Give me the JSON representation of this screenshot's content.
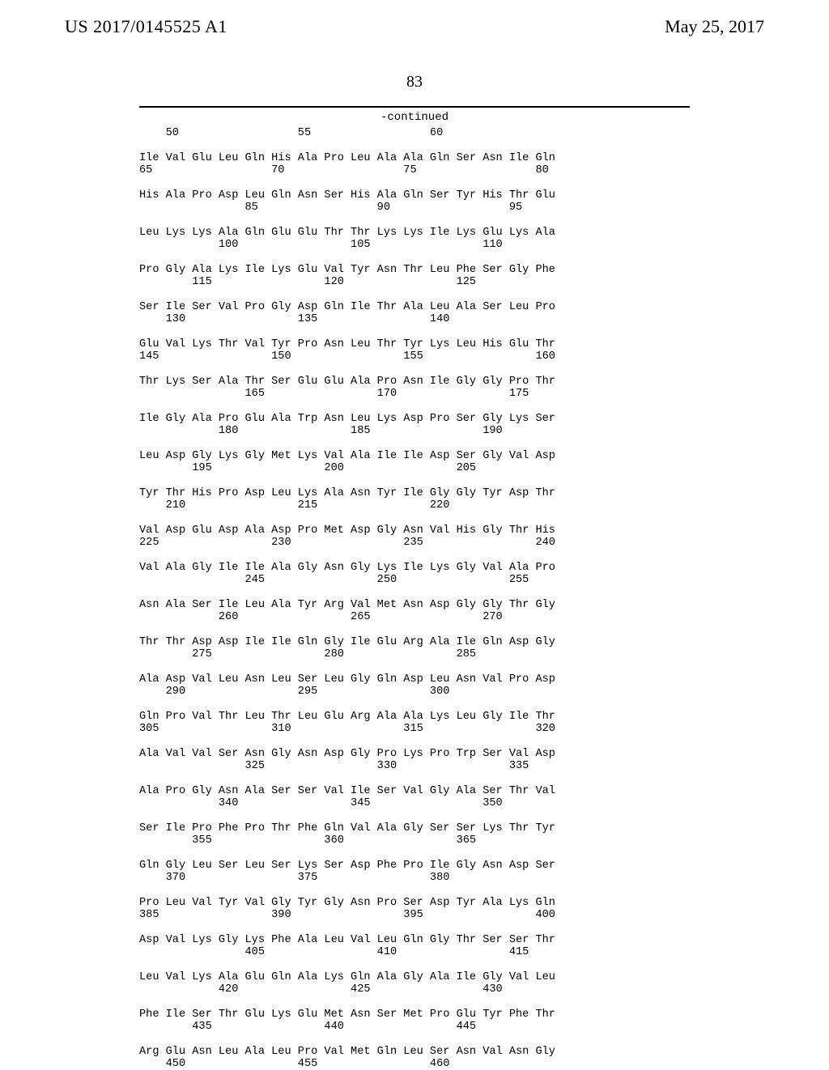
{
  "header": {
    "patent_id": "US 2017/0145525 A1",
    "pub_date": "May 25, 2017"
  },
  "page_number": "83",
  "continued_label": "-continued",
  "sequence_triplets": [
    {
      "l1": "    50                  55                  60",
      "l2": "",
      "l3": ""
    },
    {
      "l1": "Ile Val Glu Leu Gln His Ala Pro Leu Ala Ala Gln Ser Asn Ile Gln",
      "l2": "65                  70                  75                  80",
      "l3": ""
    },
    {
      "l1": "His Ala Pro Asp Leu Gln Asn Ser His Ala Gln Ser Tyr His Thr Glu",
      "l2": "                85                  90                  95",
      "l3": ""
    },
    {
      "l1": "Leu Lys Lys Ala Gln Glu Glu Thr Thr Lys Lys Ile Lys Glu Lys Ala",
      "l2": "            100                 105                 110",
      "l3": ""
    },
    {
      "l1": "Pro Gly Ala Lys Ile Lys Glu Val Tyr Asn Thr Leu Phe Ser Gly Phe",
      "l2": "        115                 120                 125",
      "l3": ""
    },
    {
      "l1": "Ser Ile Ser Val Pro Gly Asp Gln Ile Thr Ala Leu Ala Ser Leu Pro",
      "l2": "    130                 135                 140",
      "l3": ""
    },
    {
      "l1": "Glu Val Lys Thr Val Tyr Pro Asn Leu Thr Tyr Lys Leu His Glu Thr",
      "l2": "145                 150                 155                 160",
      "l3": ""
    },
    {
      "l1": "Thr Lys Ser Ala Thr Ser Glu Glu Ala Pro Asn Ile Gly Gly Pro Thr",
      "l2": "                165                 170                 175",
      "l3": ""
    },
    {
      "l1": "Ile Gly Ala Pro Glu Ala Trp Asn Leu Lys Asp Pro Ser Gly Lys Ser",
      "l2": "            180                 185                 190",
      "l3": ""
    },
    {
      "l1": "Leu Asp Gly Lys Gly Met Lys Val Ala Ile Ile Asp Ser Gly Val Asp",
      "l2": "        195                 200                 205",
      "l3": ""
    },
    {
      "l1": "Tyr Thr His Pro Asp Leu Lys Ala Asn Tyr Ile Gly Gly Tyr Asp Thr",
      "l2": "    210                 215                 220",
      "l3": ""
    },
    {
      "l1": "Val Asp Glu Asp Ala Asp Pro Met Asp Gly Asn Val His Gly Thr His",
      "l2": "225                 230                 235                 240",
      "l3": ""
    },
    {
      "l1": "Val Ala Gly Ile Ile Ala Gly Asn Gly Lys Ile Lys Gly Val Ala Pro",
      "l2": "                245                 250                 255",
      "l3": ""
    },
    {
      "l1": "Asn Ala Ser Ile Leu Ala Tyr Arg Val Met Asn Asp Gly Gly Thr Gly",
      "l2": "            260                 265                 270",
      "l3": ""
    },
    {
      "l1": "Thr Thr Asp Asp Ile Ile Gln Gly Ile Glu Arg Ala Ile Gln Asp Gly",
      "l2": "        275                 280                 285",
      "l3": ""
    },
    {
      "l1": "Ala Asp Val Leu Asn Leu Ser Leu Gly Gln Asp Leu Asn Val Pro Asp",
      "l2": "    290                 295                 300",
      "l3": ""
    },
    {
      "l1": "Gln Pro Val Thr Leu Thr Leu Glu Arg Ala Ala Lys Leu Gly Ile Thr",
      "l2": "305                 310                 315                 320",
      "l3": ""
    },
    {
      "l1": "Ala Val Val Ser Asn Gly Asn Asp Gly Pro Lys Pro Trp Ser Val Asp",
      "l2": "                325                 330                 335",
      "l3": ""
    },
    {
      "l1": "Ala Pro Gly Asn Ala Ser Ser Val Ile Ser Val Gly Ala Ser Thr Val",
      "l2": "            340                 345                 350",
      "l3": ""
    },
    {
      "l1": "Ser Ile Pro Phe Pro Thr Phe Gln Val Ala Gly Ser Ser Lys Thr Tyr",
      "l2": "        355                 360                 365",
      "l3": ""
    },
    {
      "l1": "Gln Gly Leu Ser Leu Ser Lys Ser Asp Phe Pro Ile Gly Asn Asp Ser",
      "l2": "    370                 375                 380",
      "l3": ""
    },
    {
      "l1": "Pro Leu Val Tyr Val Gly Tyr Gly Asn Pro Ser Asp Tyr Ala Lys Gln",
      "l2": "385                 390                 395                 400",
      "l3": ""
    },
    {
      "l1": "Asp Val Lys Gly Lys Phe Ala Leu Val Leu Gln Gly Thr Ser Ser Thr",
      "l2": "                405                 410                 415",
      "l3": ""
    },
    {
      "l1": "Leu Val Lys Ala Glu Gln Ala Lys Gln Ala Gly Ala Ile Gly Val Leu",
      "l2": "            420                 425                 430",
      "l3": ""
    },
    {
      "l1": "Phe Ile Ser Thr Glu Lys Glu Met Asn Ser Met Pro Glu Tyr Phe Thr",
      "l2": "        435                 440                 445",
      "l3": ""
    },
    {
      "l1": "Arg Glu Asn Leu Ala Leu Pro Val Met Gln Leu Ser Asn Val Asn Gly",
      "l2": "    450                 455                 460",
      "l3": ""
    }
  ]
}
